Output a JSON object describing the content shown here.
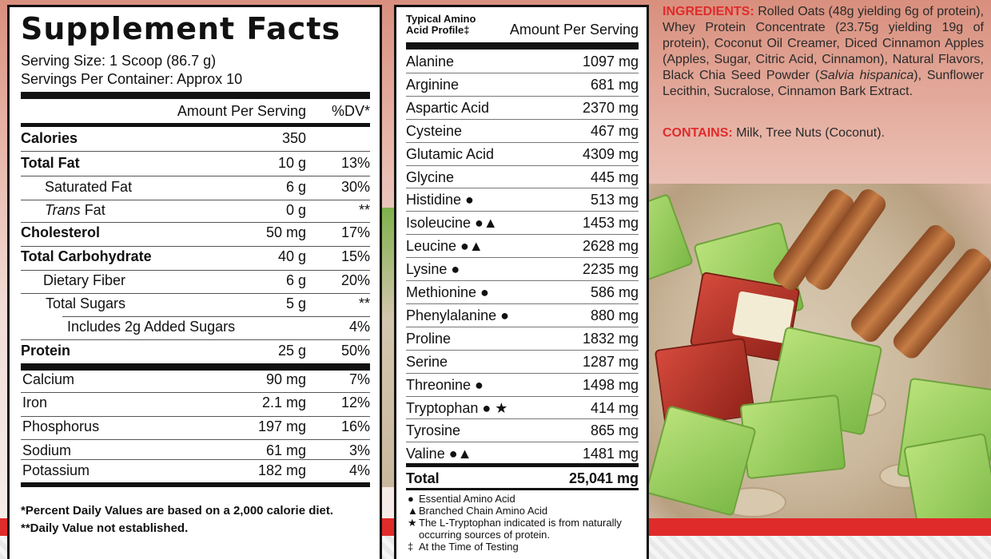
{
  "supplement_facts": {
    "title": "Supplement Facts",
    "serving_size": "Serving Size: 1 Scoop (86.7 g)",
    "servings_per_container": "Servings Per Container: Approx 10",
    "header_amount": "Amount Per Serving",
    "header_dv": "%DV*",
    "rows": [
      {
        "label": "Calories",
        "amount": "350",
        "dv": ""
      },
      {
        "label": "Total Fat",
        "amount": "10 g",
        "dv": "13%"
      },
      {
        "label": "Saturated Fat",
        "amount": "6 g",
        "dv": "30%"
      },
      {
        "label_italic": "Trans",
        "label": " Fat",
        "amount": "0 g",
        "dv": "**"
      },
      {
        "label": "Cholesterol",
        "amount": "50 mg",
        "dv": "17%"
      },
      {
        "label": "Total Carbohydrate",
        "amount": "40 g",
        "dv": "15%"
      },
      {
        "label": "Dietary Fiber",
        "amount": "6 g",
        "dv": "20%"
      },
      {
        "label": "Total Sugars",
        "amount": "5 g",
        "dv": "**"
      },
      {
        "label": "Includes 2g Added Sugars",
        "amount": "",
        "dv": "4%"
      },
      {
        "label": "Protein",
        "amount": "25 g",
        "dv": "50%"
      },
      {
        "label": "Calcium",
        "amount": "90 mg",
        "dv": "7%"
      },
      {
        "label": "Iron",
        "amount": "2.1 mg",
        "dv": "12%"
      },
      {
        "label": "Phosphorus",
        "amount": "197 mg",
        "dv": "16%"
      },
      {
        "label": "Sodium",
        "amount": "61 mg",
        "dv": "3%"
      },
      {
        "label": "Potassium",
        "amount": "182 mg",
        "dv": "4%"
      }
    ],
    "footnote1": "*Percent Daily Values are based on a 2,000 calorie diet.",
    "footnote2": "**Daily Value not established."
  },
  "amino_profile": {
    "title_line1": "Typical Amino",
    "title_line2": "Acid Profile‡",
    "header_amount": "Amount Per Serving",
    "rows": [
      {
        "label": "Alanine",
        "value": "1097 mg"
      },
      {
        "label": "Arginine",
        "value": "681 mg"
      },
      {
        "label": "Aspartic Acid",
        "value": "2370 mg"
      },
      {
        "label": "Cysteine",
        "value": "467 mg"
      },
      {
        "label": "Glutamic Acid",
        "value": "4309 mg"
      },
      {
        "label": "Glycine",
        "value": "445 mg"
      },
      {
        "label": "Histidine ●",
        "value": "513 mg"
      },
      {
        "label": "Isoleucine ●▲",
        "value": "1453 mg"
      },
      {
        "label": "Leucine ●▲",
        "value": "2628 mg"
      },
      {
        "label": "Lysine ●",
        "value": "2235 mg"
      },
      {
        "label": "Methionine ●",
        "value": "586 mg"
      },
      {
        "label": "Phenylalanine ●",
        "value": "880 mg"
      },
      {
        "label": "Proline",
        "value": "1832 mg"
      },
      {
        "label": "Serine",
        "value": "1287 mg"
      },
      {
        "label": "Threonine ●",
        "value": "1498 mg"
      },
      {
        "label": "Tryptophan ● ★",
        "value": "414 mg"
      },
      {
        "label": "Tyrosine",
        "value": "865 mg"
      },
      {
        "label": "Valine ●▲",
        "value": "1481 mg"
      }
    ],
    "total_label": "Total",
    "total_value": "25,041 mg",
    "legend": [
      {
        "symbol": "●",
        "text": "Essential Amino Acid"
      },
      {
        "symbol": "▲",
        "text": "Branched Chain Amino Acid"
      },
      {
        "symbol": "★",
        "text": "The L-Tryptophan indicated is from naturally"
      },
      {
        "symbol": "",
        "text": "occurring sources of protein."
      },
      {
        "symbol": "‡",
        "text": "At the Time of Testing"
      }
    ]
  },
  "ingredients": {
    "label": "INGREDIENTS:",
    "text_before_italic": " Rolled Oats (48g yielding 6g of protein), Whey Protein Concentrate (23.75g yielding 19g of protein), Coconut Oil Creamer, Diced Cinnamon Apples (Apples, Sugar, Citric Acid, Cinnamon), Natural Flavors, Black Chia Seed Powder (",
    "italic": "Salvia hispanica",
    "text_after_italic": "), Sunflower Lecithin, Sucralose, Cinnamon Bark Extract."
  },
  "contains": {
    "label": "CONTAINS:",
    "text": " Milk, Tree Nuts (Coconut)."
  },
  "colors": {
    "accent_red": "#e02b2b",
    "panel_border": "#111111"
  }
}
